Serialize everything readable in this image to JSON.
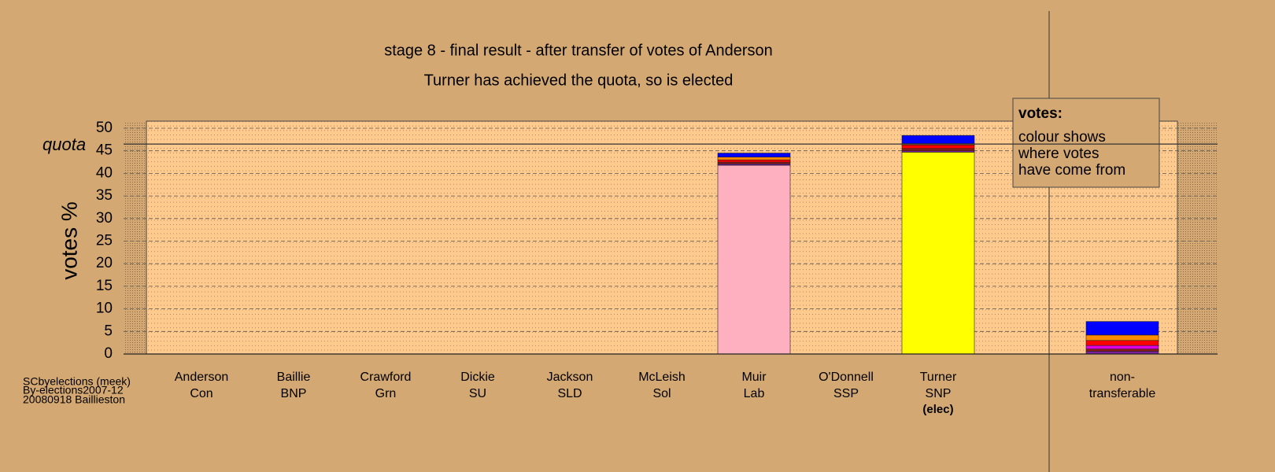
{
  "chart_data": {
    "type": "stacked_bar",
    "title": "stage 8 - final result - after transfer of votes of Anderson",
    "subtitle": "Turner has achieved the quota, so is elected",
    "y_label": "votes %",
    "quota_label": "quota",
    "quota": 46.5,
    "categories": [
      "Anderson",
      "Baillie",
      "Crawford",
      "Dickie",
      "Jackson",
      "McLeish",
      "Muir",
      "O'Donnell",
      "Turner",
      "non-"
    ],
    "parties": [
      "Con",
      "BNP",
      "Grn",
      "SU",
      "SLD",
      "Sol",
      "Lab",
      "SSP",
      "SNP",
      "transferable"
    ],
    "status": [
      null,
      null,
      null,
      null,
      null,
      null,
      null,
      null,
      "(elec)",
      null
    ],
    "series": [
      {
        "color": "#ffb0c0",
        "values": [
          0,
          0,
          0,
          0,
          0,
          0,
          41.8,
          0,
          0,
          0
        ]
      },
      {
        "color": "#ffff00",
        "values": [
          0,
          0,
          0,
          0,
          0,
          0,
          0,
          0,
          44.7,
          0
        ]
      },
      {
        "color": "#7a1fa0",
        "values": [
          0,
          0,
          0,
          0,
          0,
          0,
          0.3,
          0,
          0.3,
          0.6
        ]
      },
      {
        "color": "#8b1a1a",
        "values": [
          0,
          0,
          0,
          0,
          0,
          0,
          0.4,
          0,
          0.5,
          0.5
        ]
      },
      {
        "color": "#e000e0",
        "values": [
          0,
          0,
          0,
          0,
          0,
          0,
          0,
          0,
          0,
          0.8
        ]
      },
      {
        "color": "#ff0000",
        "values": [
          0,
          0,
          0,
          0,
          0,
          0,
          0.5,
          0,
          0.8,
          1.1
        ]
      },
      {
        "color": "#ff8c00",
        "values": [
          0,
          0,
          0,
          0,
          0,
          0,
          0.6,
          0,
          0.3,
          1.2
        ]
      },
      {
        "color": "#0000ff",
        "values": [
          0,
          0,
          0,
          0,
          0,
          0,
          0.9,
          0,
          1.8,
          3.0
        ]
      }
    ],
    "ylim": [
      0,
      51.5
    ],
    "yticks": [
      0,
      5,
      10,
      15,
      20,
      25,
      30,
      35,
      40,
      45,
      50
    ],
    "grid": true,
    "note": {
      "title": "votes:",
      "lines": [
        "colour shows",
        "where votes",
        "have come from"
      ]
    },
    "footer": [
      "SCbyelections (meek)",
      "By-elections2007-12",
      "20080918 Baillieston"
    ]
  }
}
